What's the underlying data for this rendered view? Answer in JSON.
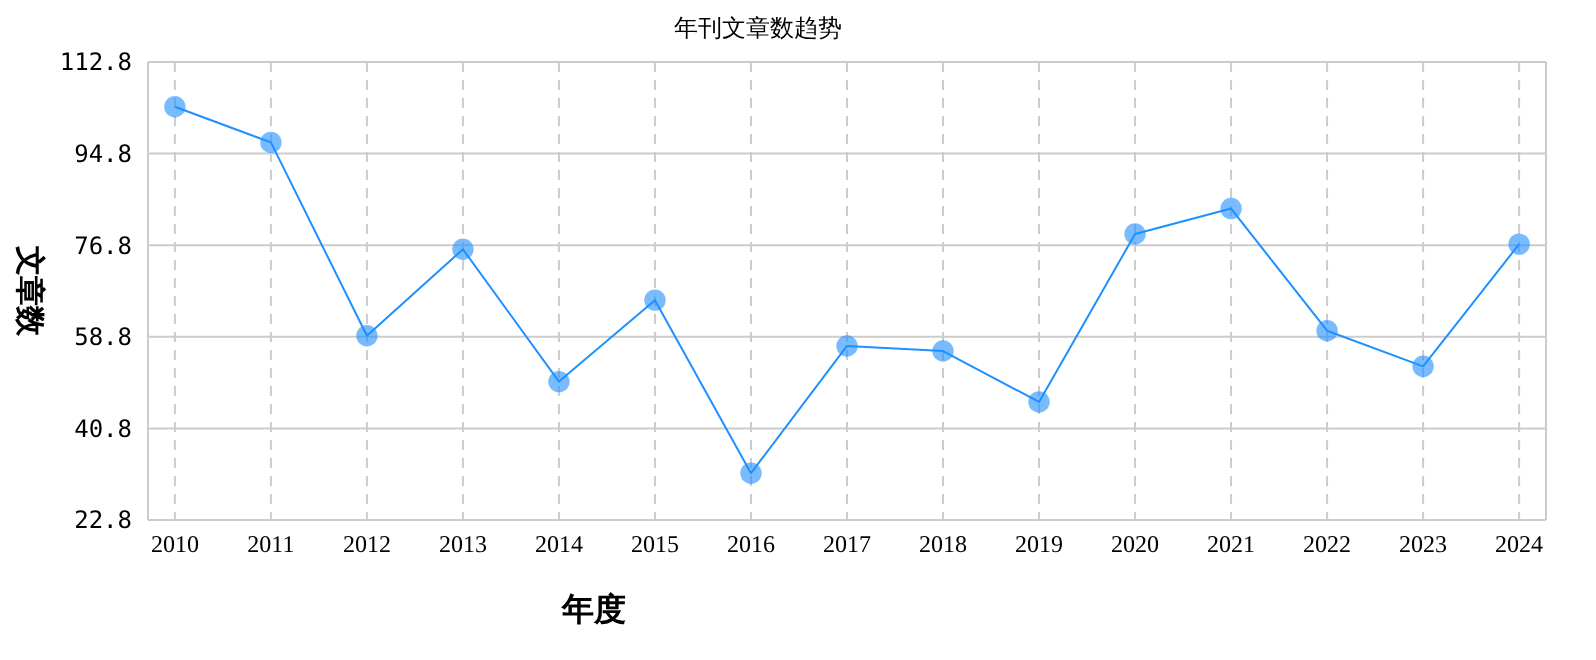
{
  "chart_data": {
    "type": "line",
    "title": "年刊文章数趋势",
    "xlabel": "年度",
    "ylabel": "文章数",
    "categories": [
      "2010",
      "2011",
      "2012",
      "2013",
      "2014",
      "2015",
      "2016",
      "2017",
      "2018",
      "2019",
      "2020",
      "2021",
      "2022",
      "2023",
      "2024"
    ],
    "series": [
      {
        "color": "#1e90ff",
        "values": [
          104,
          97,
          59,
          76,
          50,
          66,
          32,
          57,
          56,
          46,
          79,
          84,
          60,
          53,
          77
        ]
      }
    ],
    "ylim": [
      22.8,
      112.8
    ],
    "yticks": [
      22.8,
      40.8,
      58.8,
      76.8,
      94.8,
      112.8
    ],
    "grid": true,
    "marker": "circle",
    "line_style": "solid"
  }
}
